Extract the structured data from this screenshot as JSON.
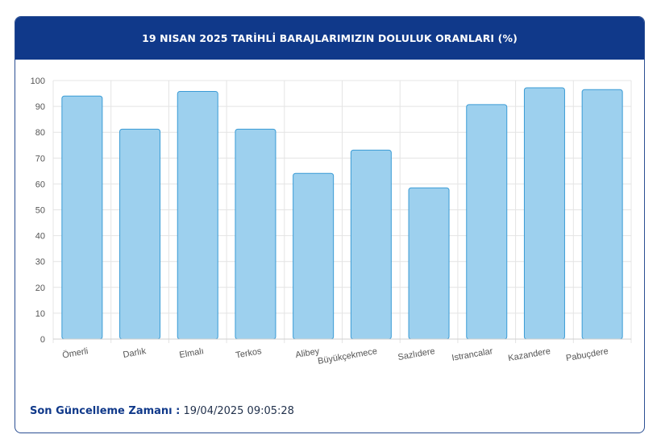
{
  "header": {
    "title": "19 NISAN 2025 TARİHLİ BARAJLARIMIZIN DOLULUK ORANLARI (%)"
  },
  "footer": {
    "label": "Son Güncelleme Zamanı :",
    "value": "19/04/2025 09:05:28"
  },
  "colors": {
    "header_bg": "#10398a",
    "bar_fill": "#9dd0ee",
    "bar_stroke": "#3a9bd5",
    "grid": "#e4e4e4"
  },
  "chart_data": {
    "type": "bar",
    "categories": [
      "Ömerli",
      "Darlık",
      "Elmalı",
      "Terkos",
      "Alibey",
      "Büyükçekmece",
      "Sazlıdere",
      "Istrancalar",
      "Kazandere",
      "Pabuçdere"
    ],
    "values": [
      94.0,
      81.2,
      95.8,
      81.2,
      64.1,
      73.1,
      58.5,
      90.7,
      97.2,
      96.5
    ],
    "ylim": [
      0,
      100
    ],
    "yticks": [
      0,
      10,
      20,
      30,
      40,
      50,
      60,
      70,
      80,
      90,
      100
    ],
    "grid": true,
    "legend": "none"
  }
}
